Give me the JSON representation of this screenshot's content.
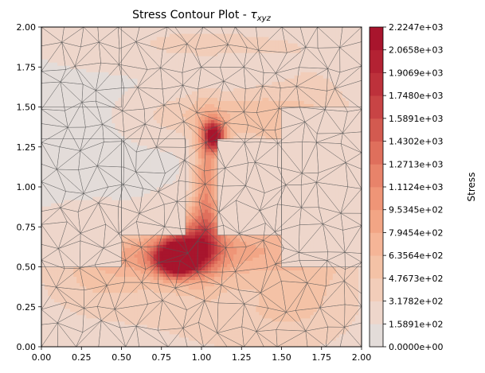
{
  "chart_data": {
    "type": "heatmap",
    "subtype": "triangulated-mesh-contour",
    "title_prefix": "Stress Contour Plot - ",
    "title_symbol": "τ",
    "title_subscript": "xyz",
    "xlim": [
      0,
      2
    ],
    "ylim": [
      0,
      2
    ],
    "x_ticks": [
      "0.00",
      "0.25",
      "0.50",
      "0.75",
      "1.00",
      "1.25",
      "1.50",
      "1.75",
      "2.00"
    ],
    "y_ticks": [
      "0.00",
      "0.25",
      "0.50",
      "0.75",
      "1.00",
      "1.25",
      "1.50",
      "1.75",
      "2.00"
    ],
    "colorbar": {
      "label": "Stress",
      "min": 0,
      "max": 2224.7,
      "levels": 14,
      "tick_labels": [
        "0.0000e+00",
        "1.5891e+02",
        "3.1782e+02",
        "4.7673e+02",
        "6.3564e+02",
        "7.9454e+02",
        "9.5345e+02",
        "1.1124e+03",
        "1.2713e+03",
        "1.4302e+03",
        "1.5891e+03",
        "1.7480e+03",
        "1.9069e+03",
        "2.0658e+03",
        "2.2247e+03"
      ],
      "colors": [
        "#e3dcd9",
        "#eed6cb",
        "#f2cdb9",
        "#f4c2a6",
        "#f5b597",
        "#f2a585",
        "#ef9577",
        "#e8836a",
        "#df6f5c",
        "#d35a50",
        "#c84445",
        "#bd313b",
        "#b32233",
        "#a8152d"
      ]
    },
    "cutouts": [
      {
        "x": [
          0.0,
          0.5
        ],
        "y": [
          1.5,
          2.0
        ]
      },
      {
        "x": [
          0.0,
          0.5
        ],
        "y": [
          0.5,
          1.3
        ]
      },
      {
        "x": [
          0.5,
          0.9
        ],
        "y": [
          0.7,
          1.3
        ]
      },
      {
        "x": [
          1.1,
          1.5
        ],
        "y": [
          0.7,
          1.3
        ]
      },
      {
        "x": [
          1.5,
          2.0
        ],
        "y": [
          0.5,
          1.5
        ]
      }
    ],
    "stress_hotspots": [
      {
        "x": 0.85,
        "y": 0.55,
        "value": 2224.7
      },
      {
        "x": 1.08,
        "y": 1.32,
        "value": 1900
      }
    ]
  }
}
